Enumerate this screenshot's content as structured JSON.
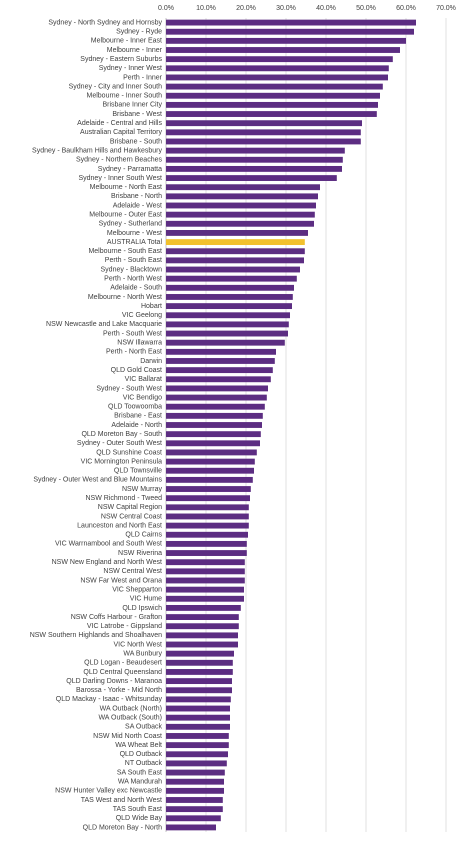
{
  "chart_data": {
    "type": "barh",
    "categories": [
      "Sydney - North Sydney and Hornsby",
      "Sydney - Ryde",
      "Melbourne - Inner East",
      "Melbourne - Inner",
      "Sydney - Eastern Suburbs",
      "Sydney - Inner West",
      "Perth - Inner",
      "Sydney - City and Inner South",
      "Melbourne - Inner South",
      "Brisbane Inner City",
      "Brisbane - West",
      "Adelaide - Central and Hills",
      "Australian Capital Territory",
      "Brisbane - South",
      "Sydney - Baulkham Hills and Hawkesbury",
      "Sydney - Northern Beaches",
      "Sydney - Parramatta",
      "Sydney - Inner South West",
      "Melbourne - North East",
      "Brisbane - North",
      "Adelaide - West",
      "Melbourne - Outer East",
      "Sydney - Sutherland",
      "Melbourne - West",
      "AUSTRALIA Total",
      "Melbourne - South East",
      "Perth - South East",
      "Sydney - Blacktown",
      "Perth - North West",
      "Adelaide - South",
      "Melbourne - North West",
      "Hobart",
      "VIC Geelong",
      "NSW Newcastle and Lake Macquarie",
      "Perth - South West",
      "NSW Illawarra",
      "Perth - North East",
      "Darwin",
      "QLD Gold Coast",
      "VIC Ballarat",
      "Sydney - South West",
      "VIC Bendigo",
      "QLD Toowoomba",
      "Brisbane - East",
      "Adelaide - North",
      "QLD Moreton Bay - South",
      "Sydney - Outer South West",
      "QLD Sunshine Coast",
      "VIC Mornington Peninsula",
      "QLD Townsville",
      "Sydney - Outer West and Blue Mountains",
      "NSW Murray",
      "NSW Richmond - Tweed",
      "NSW Capital Region",
      "NSW Central Coast",
      "Launceston and North East",
      "QLD Cairns",
      "VIC Warrnambool and South West",
      "NSW Riverina",
      "NSW New England and North West",
      "NSW Central West",
      "NSW Far West and Orana",
      "VIC Shepparton",
      "VIC Hume",
      "QLD Ipswich",
      "NSW Coffs Harbour - Grafton",
      "VIC Latrobe - Gippsland",
      "NSW Southern Highlands and Shoalhaven",
      "VIC North West",
      "WA Bunbury",
      "QLD Logan - Beaudesert",
      "QLD Central Queensland",
      "QLD Darling Downs - Maranoa",
      "Barossa - Yorke - Mid North",
      "QLD Mackay - Isaac - Whitsunday",
      "WA Outback (North)",
      "WA Outback (South)",
      "SA Outback",
      "NSW Mid North Coast",
      "WA Wheat Belt",
      "QLD Outback",
      "NT Outback",
      "SA South East",
      "WA Mandurah",
      "NSW Hunter Valley exc Newcastle",
      "TAS West and North West",
      "TAS South East",
      "QLD Wide Bay",
      "QLD Moreton Bay - North"
    ],
    "values": [
      62.5,
      62,
      60,
      58.5,
      56.7,
      55.7,
      55.5,
      54.2,
      53.5,
      53,
      52.7,
      49,
      48.7,
      48.7,
      44.7,
      44.2,
      44,
      42.7,
      38.5,
      38,
      37.5,
      37.2,
      37,
      35.5,
      34.7,
      34.7,
      34.5,
      33.5,
      32.7,
      32,
      31.7,
      31.5,
      31,
      30.7,
      30.5,
      29.7,
      27.5,
      27.2,
      26.7,
      26.2,
      25.5,
      25.2,
      24.7,
      24.2,
      24,
      23.7,
      23.5,
      22.7,
      22.2,
      22,
      21.7,
      21.2,
      21,
      20.7,
      20.7,
      20.7,
      20.5,
      20.2,
      20.2,
      19.7,
      19.7,
      19.7,
      19.5,
      19.5,
      18.7,
      18.2,
      18.2,
      18,
      18,
      17,
      16.7,
      16.7,
      16.5,
      16.5,
      16.2,
      16,
      16,
      16,
      15.7,
      15.7,
      15.5,
      15.2,
      14.7,
      14.5,
      14.5,
      14.2,
      14.2,
      13.7,
      12.5
    ],
    "colors": [
      "#5c2d82",
      "#5c2d82",
      "#5c2d82",
      "#5c2d82",
      "#5c2d82",
      "#5c2d82",
      "#5c2d82",
      "#5c2d82",
      "#5c2d82",
      "#5c2d82",
      "#5c2d82",
      "#5c2d82",
      "#5c2d82",
      "#5c2d82",
      "#5c2d82",
      "#5c2d82",
      "#5c2d82",
      "#5c2d82",
      "#5c2d82",
      "#5c2d82",
      "#5c2d82",
      "#5c2d82",
      "#5c2d82",
      "#5c2d82",
      "#f2c12e",
      "#5c2d82",
      "#5c2d82",
      "#5c2d82",
      "#5c2d82",
      "#5c2d82",
      "#5c2d82",
      "#5c2d82",
      "#5c2d82",
      "#5c2d82",
      "#5c2d82",
      "#5c2d82",
      "#5c2d82",
      "#5c2d82",
      "#5c2d82",
      "#5c2d82",
      "#5c2d82",
      "#5c2d82",
      "#5c2d82",
      "#5c2d82",
      "#5c2d82",
      "#5c2d82",
      "#5c2d82",
      "#5c2d82",
      "#5c2d82",
      "#5c2d82",
      "#5c2d82",
      "#5c2d82",
      "#5c2d82",
      "#5c2d82",
      "#5c2d82",
      "#5c2d82",
      "#5c2d82",
      "#5c2d82",
      "#5c2d82",
      "#5c2d82",
      "#5c2d82",
      "#5c2d82",
      "#5c2d82",
      "#5c2d82",
      "#5c2d82",
      "#5c2d82",
      "#5c2d82",
      "#5c2d82",
      "#5c2d82",
      "#5c2d82",
      "#5c2d82",
      "#5c2d82",
      "#5c2d82",
      "#5c2d82",
      "#5c2d82",
      "#5c2d82",
      "#5c2d82",
      "#5c2d82",
      "#5c2d82",
      "#5c2d82",
      "#5c2d82",
      "#5c2d82",
      "#5c2d82",
      "#5c2d82",
      "#5c2d82",
      "#5c2d82",
      "#5c2d82",
      "#5c2d82",
      "#5c2d82"
    ],
    "xlim": [
      0,
      70
    ],
    "xticks": [
      {
        "value": 0,
        "label": "0.0%"
      },
      {
        "value": 10,
        "label": "10.0%"
      },
      {
        "value": 20,
        "label": "20.0%"
      },
      {
        "value": 30,
        "label": "30.0%"
      },
      {
        "value": 40,
        "label": "40.0%"
      },
      {
        "value": 50,
        "label": "50.0%"
      },
      {
        "value": 60,
        "label": "60.0%"
      },
      {
        "value": 70,
        "label": "70.0%"
      }
    ],
    "grid": true
  }
}
